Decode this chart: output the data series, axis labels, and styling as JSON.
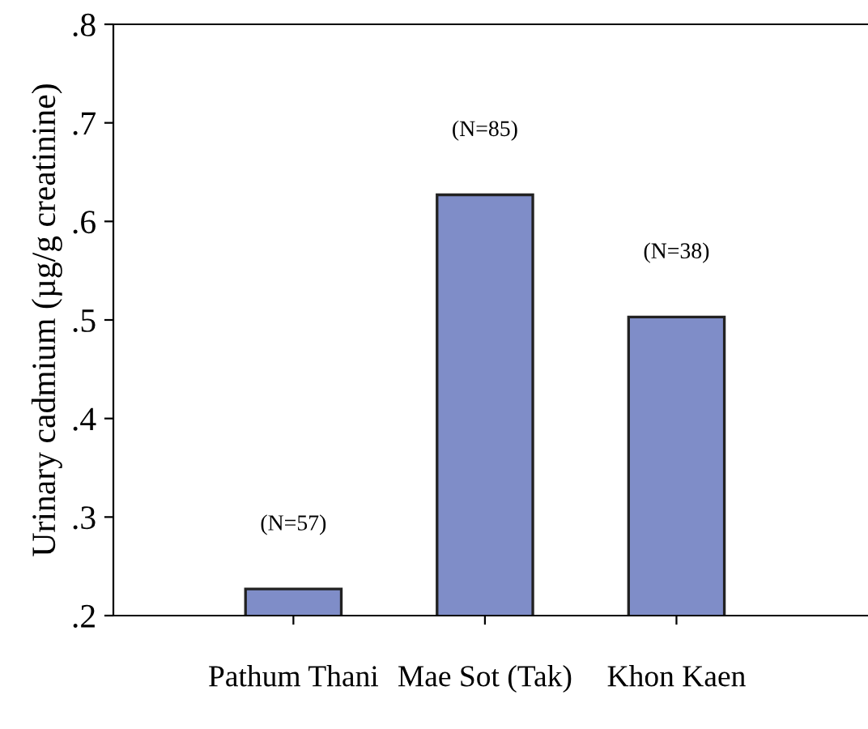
{
  "chart_data": {
    "type": "bar",
    "ylabel": "Urinary cadmium (µg/g creatinine)",
    "categories": [
      "Pathum Thani",
      "Mae Sot (Tak)",
      "Khon Kaen"
    ],
    "values": [
      0.227,
      0.627,
      0.503
    ],
    "color": "#7f8dc8",
    "ylim": [
      0.2,
      0.8
    ],
    "yticks": [
      {
        "value": 0.2,
        "label": ".2"
      },
      {
        "value": 0.3,
        "label": ".3"
      },
      {
        "value": 0.4,
        "label": ".4"
      },
      {
        "value": 0.5,
        "label": ".5"
      },
      {
        "value": 0.6,
        "label": ".6"
      },
      {
        "value": 0.7,
        "label": ".7"
      },
      {
        "value": 0.8,
        "label": ".8"
      }
    ],
    "annotations": [
      {
        "text": "(N=57)",
        "x": "Pathum Thani",
        "y": 0.227
      },
      {
        "text": "(N=85)",
        "x": "Mae Sot (Tak)",
        "y": 0.627
      },
      {
        "text": "(N=38)",
        "x": "Khon Kaen",
        "y": 0.503
      }
    ],
    "grid": false,
    "legend": false
  }
}
